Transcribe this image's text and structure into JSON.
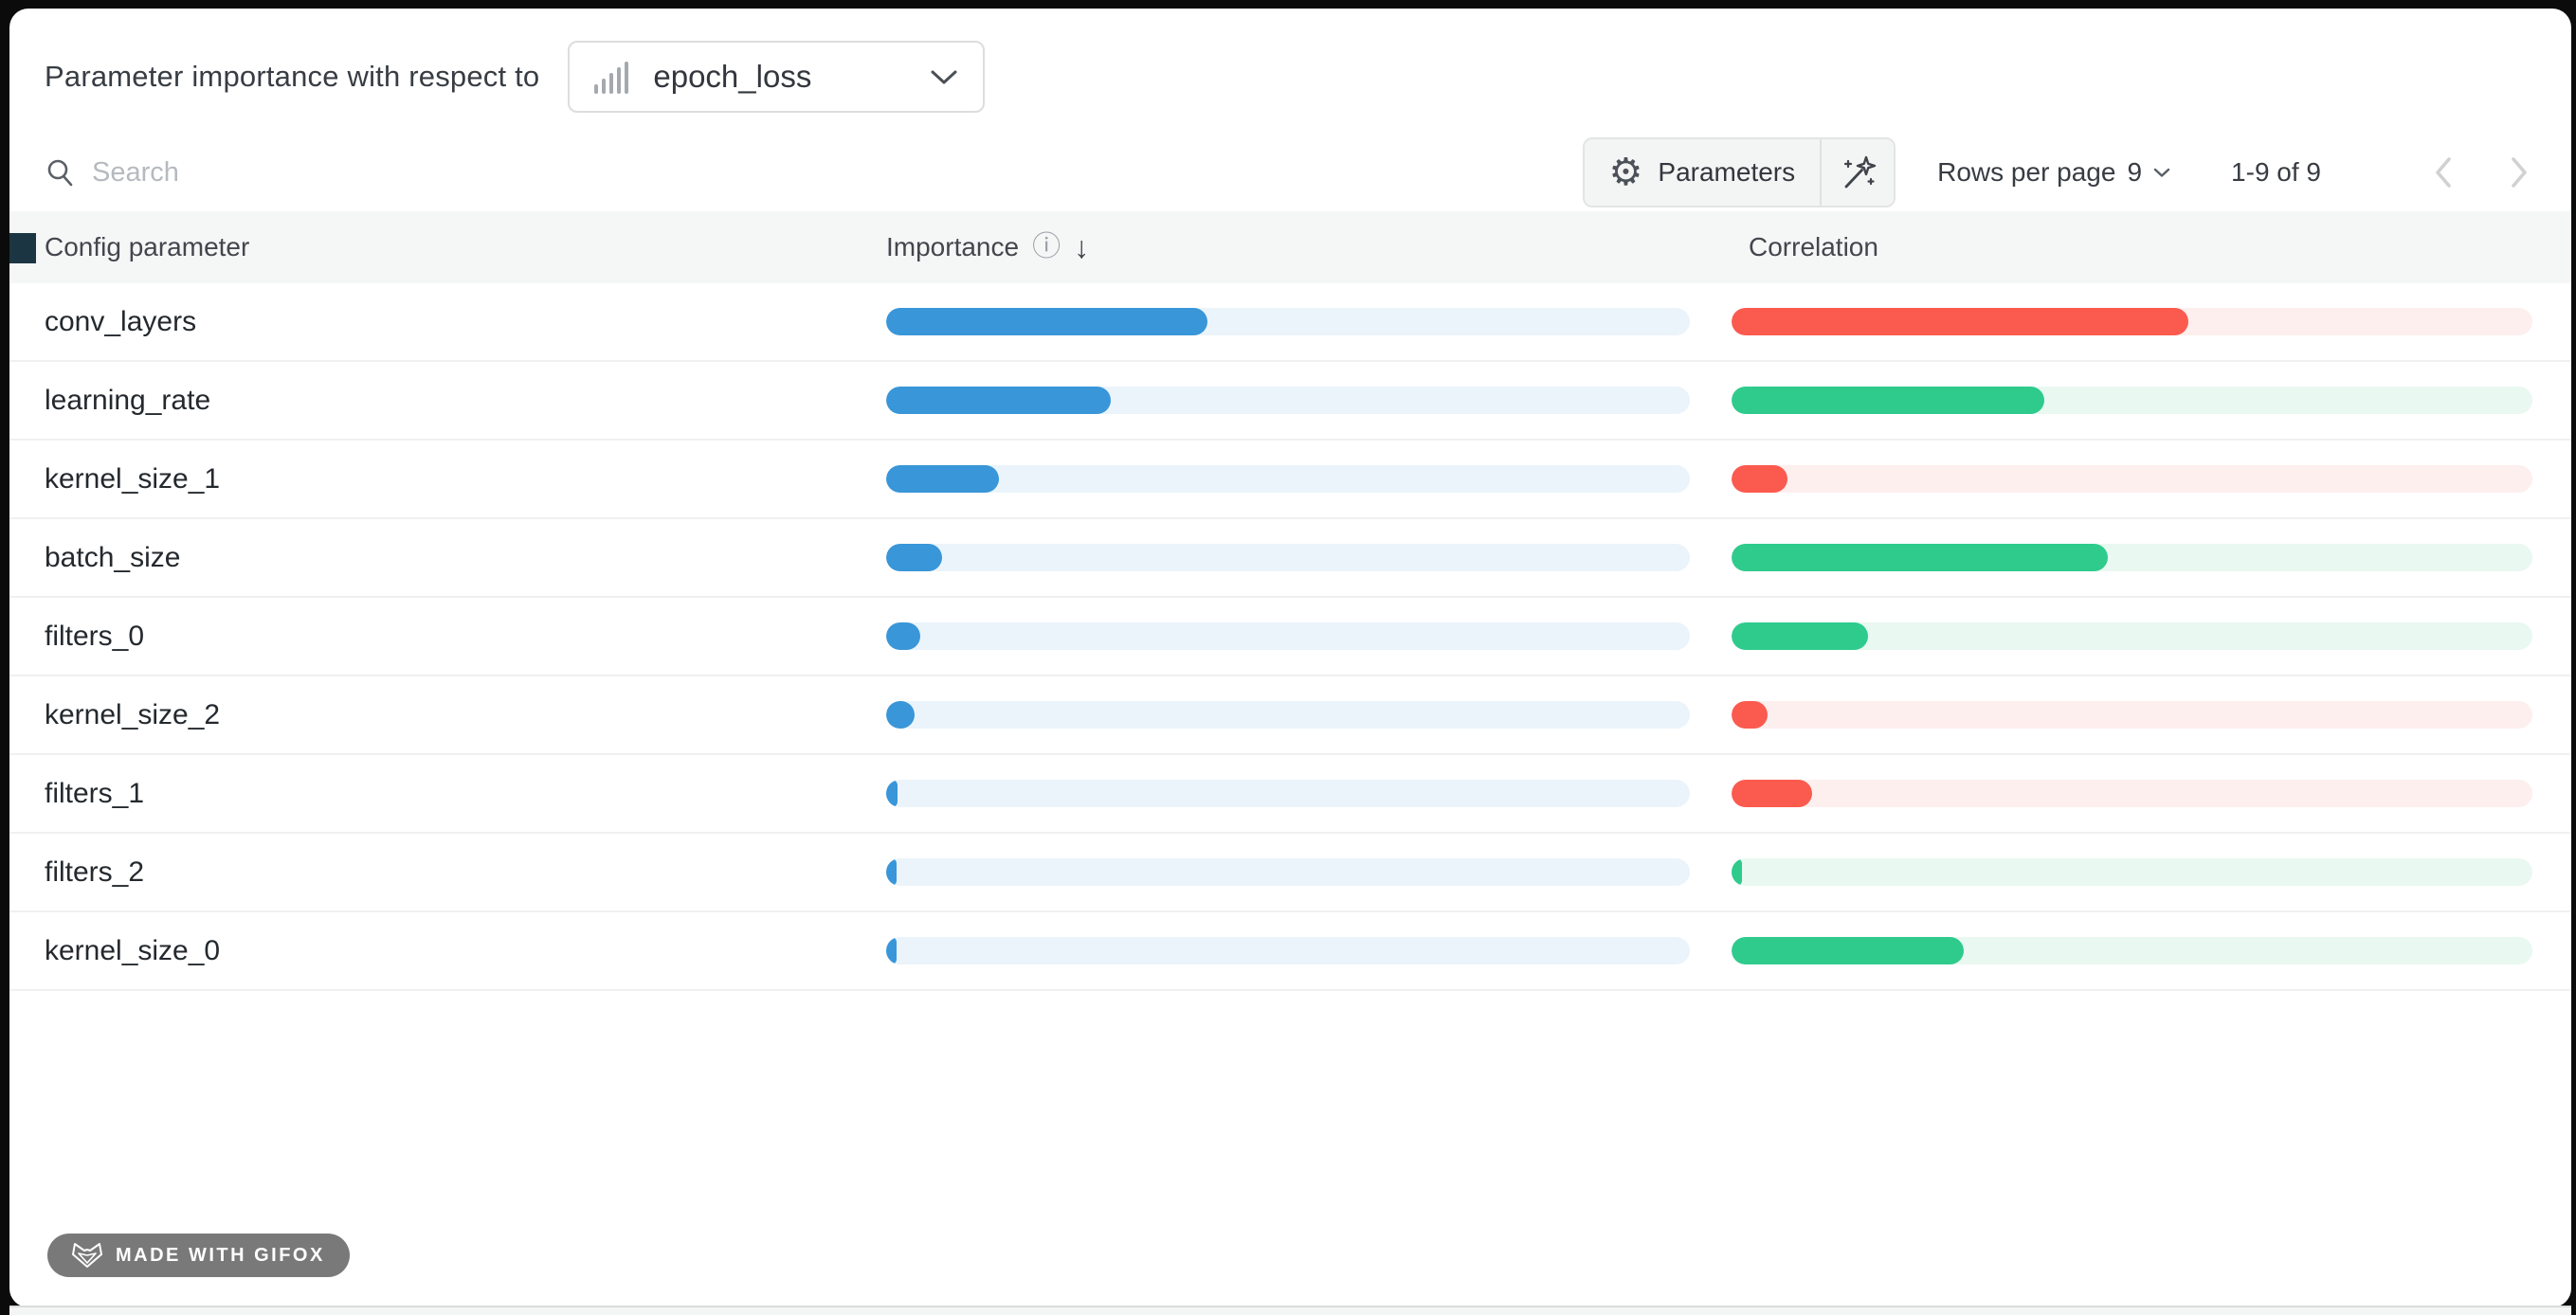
{
  "panel": {
    "title": "Parameter importance with respect to",
    "metric_selector": {
      "value": "epoch_loss",
      "icon": "metric-bars-icon"
    }
  },
  "toolbar": {
    "search_placeholder": "Search",
    "parameters_button_label": "Parameters",
    "rows_per_page_label": "Rows per page",
    "rows_per_page_value": "9",
    "range_text": "1-9 of 9"
  },
  "icons": {
    "gear": "⚙",
    "info": "ⓘ",
    "sort_desc": "↓"
  },
  "table": {
    "columns": [
      "Config parameter",
      "Importance",
      "Correlation"
    ],
    "rows": [
      {
        "parameter": "conv_layers",
        "importance": 0.4,
        "correlation": -0.57
      },
      {
        "parameter": "learning_rate",
        "importance": 0.28,
        "correlation": 0.39
      },
      {
        "parameter": "kernel_size_1",
        "importance": 0.14,
        "correlation": -0.07
      },
      {
        "parameter": "batch_size",
        "importance": 0.07,
        "correlation": 0.47
      },
      {
        "parameter": "filters_0",
        "importance": 0.042,
        "correlation": 0.17
      },
      {
        "parameter": "kernel_size_2",
        "importance": 0.035,
        "correlation": -0.045
      },
      {
        "parameter": "filters_1",
        "importance": 0.014,
        "correlation": -0.1
      },
      {
        "parameter": "filters_2",
        "importance": 0.013,
        "correlation": 0.012
      },
      {
        "parameter": "kernel_size_0",
        "importance": 0.012,
        "correlation": 0.29
      }
    ]
  },
  "chart_data": {
    "type": "bar",
    "orientation": "horizontal",
    "title": "Parameter importance with respect to epoch_loss",
    "categories": [
      "conv_layers",
      "learning_rate",
      "kernel_size_1",
      "batch_size",
      "filters_0",
      "kernel_size_2",
      "filters_1",
      "filters_2",
      "kernel_size_0"
    ],
    "series": [
      {
        "name": "Importance",
        "values": [
          0.4,
          0.28,
          0.14,
          0.07,
          0.042,
          0.035,
          0.014,
          0.013,
          0.012
        ]
      },
      {
        "name": "Correlation",
        "values": [
          -0.57,
          0.39,
          -0.07,
          0.47,
          0.17,
          -0.045,
          -0.1,
          0.012,
          0.29
        ]
      }
    ],
    "xlim": [
      0,
      1
    ],
    "grid": false,
    "legend_position": "none"
  },
  "colors": {
    "importance_fill": "#3996d8",
    "importance_track": "#ebf4fb",
    "positive_fill": "#2ecb8d",
    "positive_track": "#e9f8f1",
    "negative_fill": "#fb5a4e",
    "negative_track": "#fdefee",
    "header_band": "#f5f6f6",
    "text_dark": "#24292e"
  },
  "badge": {
    "text": "MADE WITH GIFOX"
  }
}
